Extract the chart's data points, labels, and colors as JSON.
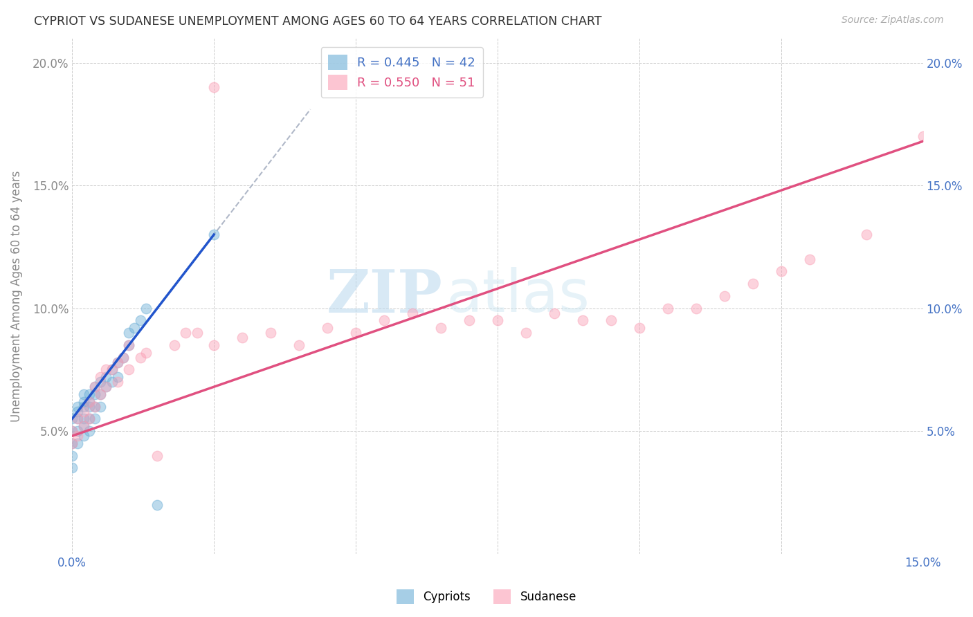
{
  "title": "CYPRIOT VS SUDANESE UNEMPLOYMENT AMONG AGES 60 TO 64 YEARS CORRELATION CHART",
  "source": "Source: ZipAtlas.com",
  "ylabel": "Unemployment Among Ages 60 to 64 years",
  "xlim": [
    0.0,
    0.15
  ],
  "ylim": [
    0.0,
    0.21
  ],
  "xticks": [
    0.0,
    0.025,
    0.05,
    0.075,
    0.1,
    0.125,
    0.15
  ],
  "yticks": [
    0.0,
    0.05,
    0.1,
    0.15,
    0.2
  ],
  "cypriot_color": "#6baed6",
  "sudanese_color": "#fa9fb5",
  "cypriot_line_color": "#2255cc",
  "sudanese_line_color": "#e05080",
  "dash_color": "#b0b8c8",
  "cypriot_R": 0.445,
  "cypriot_N": 42,
  "sudanese_R": 0.55,
  "sudanese_N": 51,
  "cypriot_x": [
    0.0,
    0.0,
    0.0,
    0.0,
    0.0,
    0.001,
    0.001,
    0.001,
    0.001,
    0.001,
    0.002,
    0.002,
    0.002,
    0.002,
    0.002,
    0.002,
    0.003,
    0.003,
    0.003,
    0.003,
    0.003,
    0.004,
    0.004,
    0.004,
    0.004,
    0.005,
    0.005,
    0.005,
    0.006,
    0.006,
    0.007,
    0.007,
    0.008,
    0.008,
    0.009,
    0.01,
    0.01,
    0.011,
    0.012,
    0.013,
    0.015,
    0.025
  ],
  "cypriot_y": [
    0.055,
    0.05,
    0.045,
    0.04,
    0.035,
    0.06,
    0.058,
    0.055,
    0.05,
    0.045,
    0.065,
    0.062,
    0.06,
    0.055,
    0.052,
    0.048,
    0.065,
    0.062,
    0.06,
    0.055,
    0.05,
    0.068,
    0.065,
    0.06,
    0.055,
    0.07,
    0.065,
    0.06,
    0.072,
    0.068,
    0.075,
    0.07,
    0.078,
    0.072,
    0.08,
    0.09,
    0.085,
    0.092,
    0.095,
    0.1,
    0.02,
    0.13
  ],
  "sudanese_x": [
    0.0,
    0.0,
    0.001,
    0.001,
    0.002,
    0.002,
    0.003,
    0.003,
    0.004,
    0.004,
    0.005,
    0.005,
    0.006,
    0.006,
    0.007,
    0.008,
    0.008,
    0.009,
    0.01,
    0.01,
    0.012,
    0.013,
    0.015,
    0.018,
    0.02,
    0.022,
    0.025,
    0.03,
    0.035,
    0.04,
    0.045,
    0.05,
    0.055,
    0.06,
    0.065,
    0.07,
    0.075,
    0.08,
    0.085,
    0.09,
    0.095,
    0.1,
    0.105,
    0.11,
    0.115,
    0.12,
    0.125,
    0.13,
    0.14,
    0.15,
    0.025
  ],
  "sudanese_y": [
    0.05,
    0.045,
    0.055,
    0.048,
    0.058,
    0.052,
    0.062,
    0.055,
    0.068,
    0.06,
    0.072,
    0.065,
    0.075,
    0.068,
    0.075,
    0.078,
    0.07,
    0.08,
    0.085,
    0.075,
    0.08,
    0.082,
    0.04,
    0.085,
    0.09,
    0.09,
    0.085,
    0.088,
    0.09,
    0.085,
    0.092,
    0.09,
    0.095,
    0.098,
    0.092,
    0.095,
    0.095,
    0.09,
    0.098,
    0.095,
    0.095,
    0.092,
    0.1,
    0.1,
    0.105,
    0.11,
    0.115,
    0.12,
    0.13,
    0.17,
    0.19
  ],
  "watermark_zip": "ZIP",
  "watermark_atlas": "atlas",
  "background_color": "#ffffff",
  "grid_color": "#cccccc"
}
